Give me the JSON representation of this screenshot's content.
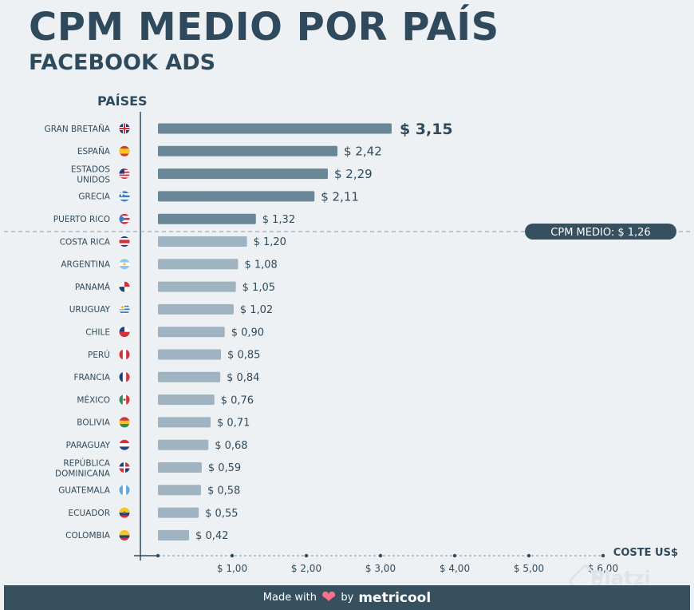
{
  "chart_data": {
    "type": "bar",
    "orientation": "horizontal",
    "title": "CPM MEDIO POR PAÍS",
    "subtitle": "FACEBOOK ADS",
    "ylabel": "PAÍSES",
    "xlabel": "COSTE US$",
    "xlim": [
      0,
      6
    ],
    "xticks": [
      {
        "value": 1,
        "label": "$ 1,00"
      },
      {
        "value": 2,
        "label": "$ 2,00"
      },
      {
        "value": 3,
        "label": "$ 3,00"
      },
      {
        "value": 4,
        "label": "$ 4,00"
      },
      {
        "value": 5,
        "label": "$ 5,00"
      },
      {
        "value": 6,
        "label": "$ 6,00"
      }
    ],
    "categories": [
      {
        "name": "GRAN BRETAÑA",
        "flag": "uk-flag-icon"
      },
      {
        "name": "ESPAÑA",
        "flag": "spain-flag-icon"
      },
      {
        "name": "ESTADOS\nUNIDOS",
        "flag": "usa-flag-icon"
      },
      {
        "name": "GRECIA",
        "flag": "greece-flag-icon"
      },
      {
        "name": "PUERTO RICO",
        "flag": "puerto-rico-flag-icon"
      },
      {
        "name": "COSTA RICA",
        "flag": "costa-rica-flag-icon"
      },
      {
        "name": "ARGENTINA",
        "flag": "argentina-flag-icon"
      },
      {
        "name": "PANAMÁ",
        "flag": "panama-flag-icon"
      },
      {
        "name": "URUGUAY",
        "flag": "uruguay-flag-icon"
      },
      {
        "name": "CHILE",
        "flag": "chile-flag-icon"
      },
      {
        "name": "PERÚ",
        "flag": "peru-flag-icon"
      },
      {
        "name": "FRANCIA",
        "flag": "france-flag-icon"
      },
      {
        "name": "MÉXICO",
        "flag": "mexico-flag-icon"
      },
      {
        "name": "BOLIVIA",
        "flag": "bolivia-flag-icon"
      },
      {
        "name": "PARAGUAY",
        "flag": "paraguay-flag-icon"
      },
      {
        "name": "REPÚBLICA\nDOMINICANA",
        "flag": "dominican-republic-flag-icon"
      },
      {
        "name": "GUATEMALA",
        "flag": "guatemala-flag-icon"
      },
      {
        "name": "ECUADOR",
        "flag": "ecuador-flag-icon"
      },
      {
        "name": "COLOMBIA",
        "flag": "colombia-flag-icon"
      }
    ],
    "values": [
      3.15,
      2.42,
      2.29,
      2.11,
      1.32,
      1.2,
      1.08,
      1.05,
      1.02,
      0.9,
      0.85,
      0.84,
      0.76,
      0.71,
      0.68,
      0.59,
      0.58,
      0.55,
      0.42
    ],
    "value_labels": [
      "$ 3,15",
      "$ 2,42",
      "$ 2,29",
      "$ 2,11",
      "$ 1,32",
      "$ 1,20",
      "$ 1,08",
      "$ 1,05",
      "$ 1,02",
      "$ 0,90",
      "$ 0,85",
      "$ 0,84",
      "$ 0,76",
      "$ 0,71",
      "$ 0,68",
      "$ 0,59",
      "$ 0,58",
      "$ 0,55",
      "$ 0,42"
    ],
    "reference_line": {
      "value": 1.26,
      "label": "CPM MEDIO: $ 1,26"
    },
    "colors": {
      "above_average": "#6a8797",
      "below_average": "#9fb4c0",
      "text": "#2f4a5c",
      "badge": "#36505f"
    }
  },
  "footer": {
    "made_with": "Made with",
    "by": "by",
    "brand": "metricool"
  },
  "watermark": "Platzi"
}
